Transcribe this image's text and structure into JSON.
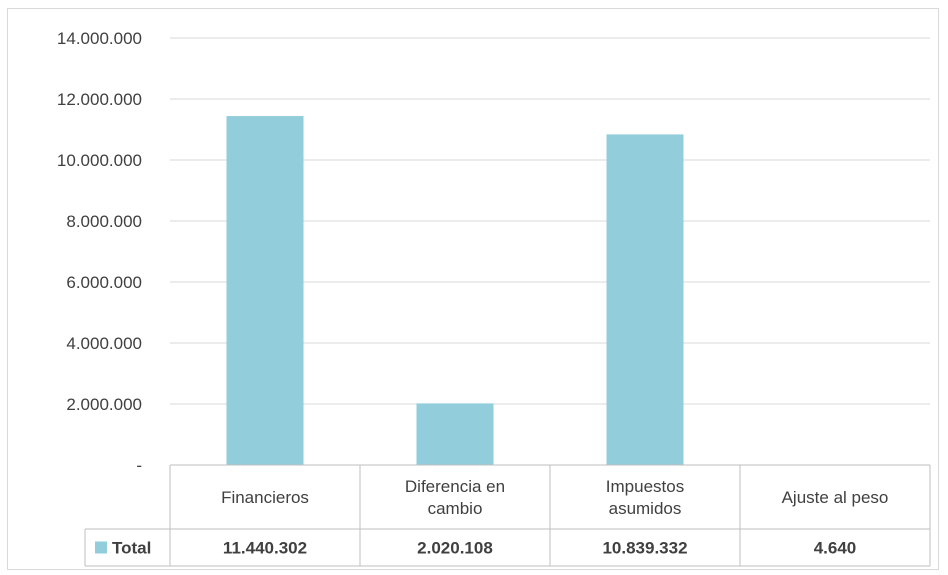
{
  "chart_data": {
    "type": "bar",
    "categories": [
      [
        "Financieros"
      ],
      [
        "Diferencia en",
        "cambio"
      ],
      [
        "Impuestos",
        "asumidos"
      ],
      [
        "Ajuste al peso"
      ]
    ],
    "series": [
      {
        "name": "Total",
        "color": "#92cddc",
        "values": [
          11440302,
          2020108,
          10839332,
          4640
        ],
        "value_labels": [
          "11.440.302",
          "2.020.108",
          "10.839.332",
          "4.640"
        ]
      }
    ],
    "ylim": [
      0,
      14000000
    ],
    "yticks": [
      0,
      2000000,
      4000000,
      6000000,
      8000000,
      10000000,
      12000000,
      14000000
    ],
    "ytick_labels": [
      "-",
      "2.000.000",
      "4.000.000",
      "6.000.000",
      "8.000.000",
      "10.000.000",
      "12.000.000",
      "14.000.000"
    ],
    "grid": true,
    "legend": "data-table"
  }
}
